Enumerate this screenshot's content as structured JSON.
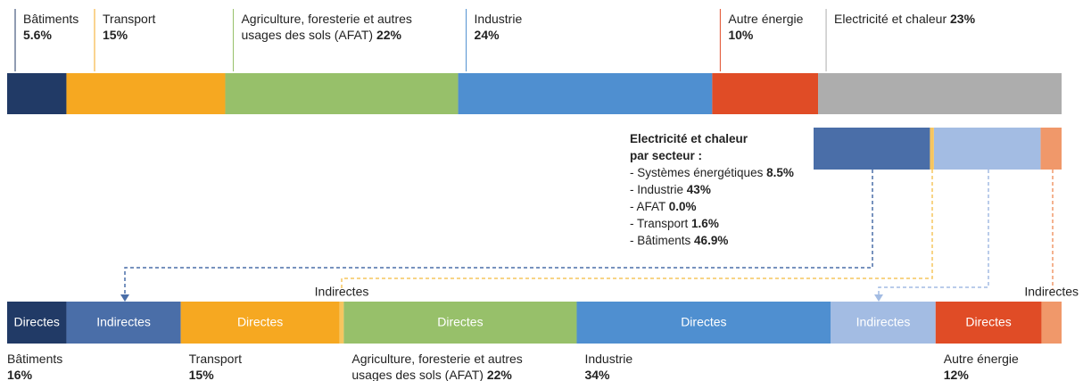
{
  "top_bar": {
    "segments": [
      {
        "label": "Bâtiments",
        "value": 5.6,
        "value_label": "5.6%",
        "color": "#213a66"
      },
      {
        "label": "Transport",
        "value": 15,
        "value_label": "15%",
        "color": "#f6a821"
      },
      {
        "label": "Agriculture, foresterie et autres usages des sols (AFAT)",
        "value": 22,
        "value_label": "22%",
        "color": "#97c06a"
      },
      {
        "label": "Industrie",
        "value": 24,
        "value_label": "24%",
        "color": "#4f8fd0"
      },
      {
        "label": "Autre énergie",
        "value": 10,
        "value_label": "10%",
        "color": "#e04c26"
      },
      {
        "label": "Electricité et chaleur",
        "value": 23,
        "value_label": "23%",
        "color": "#adadad"
      }
    ]
  },
  "breakdown": {
    "title": [
      "Electricité et chaleur",
      "par secteur :"
    ],
    "items": [
      {
        "label": "- Systèmes énergétiques",
        "value": 8.5,
        "value_label": "8.5%",
        "color": "#f0986a"
      },
      {
        "label": "- Industrie",
        "value": 43,
        "value_label": "43%",
        "color": "#a3bce3"
      },
      {
        "label": "- AFAT",
        "value": 0,
        "value_label": "0.0%",
        "color": "#97c06a"
      },
      {
        "label": "- Transport",
        "value": 1.6,
        "value_label": "1.6%",
        "color": "#f6c55f"
      },
      {
        "label": "- Bâtiments",
        "value": 46.9,
        "value_label": "46.9%",
        "color": "#4a6ea8"
      }
    ]
  },
  "bottom_bar": {
    "groups": [
      {
        "label": "Bâtiments",
        "value": 16,
        "value_label": "16%",
        "segments": [
          {
            "label": "Directes",
            "value": 5.6,
            "color": "#213a66"
          },
          {
            "label": "Indirectes",
            "value": 10.8,
            "color": "#4a6ea8"
          }
        ]
      },
      {
        "label": "Transport",
        "value": 15,
        "value_label": "15%",
        "segments": [
          {
            "label": "Directes",
            "value": 15,
            "color": "#f6a821"
          },
          {
            "label": "Indirectes",
            "value": 0.4,
            "color": "#f6c55f"
          }
        ]
      },
      {
        "label": "Agriculture, foresterie et autres usages des sols (AFAT)",
        "value": 22,
        "value_label": "22%",
        "segments": [
          {
            "label": "Directes",
            "value": 22,
            "color": "#97c06a"
          }
        ]
      },
      {
        "label": "Industrie",
        "value": 34,
        "value_label": "34%",
        "segments": [
          {
            "label": "Directes",
            "value": 24,
            "color": "#4f8fd0"
          },
          {
            "label": "Indirectes",
            "value": 9.9,
            "color": "#a3bce3"
          }
        ]
      },
      {
        "label": "Autre énergie",
        "value": 12,
        "value_label": "12%",
        "segments": [
          {
            "label": "Directes",
            "value": 10,
            "color": "#e04c26"
          },
          {
            "label": "Indirectes",
            "value": 1.9,
            "color": "#f0986a"
          }
        ]
      }
    ]
  }
}
